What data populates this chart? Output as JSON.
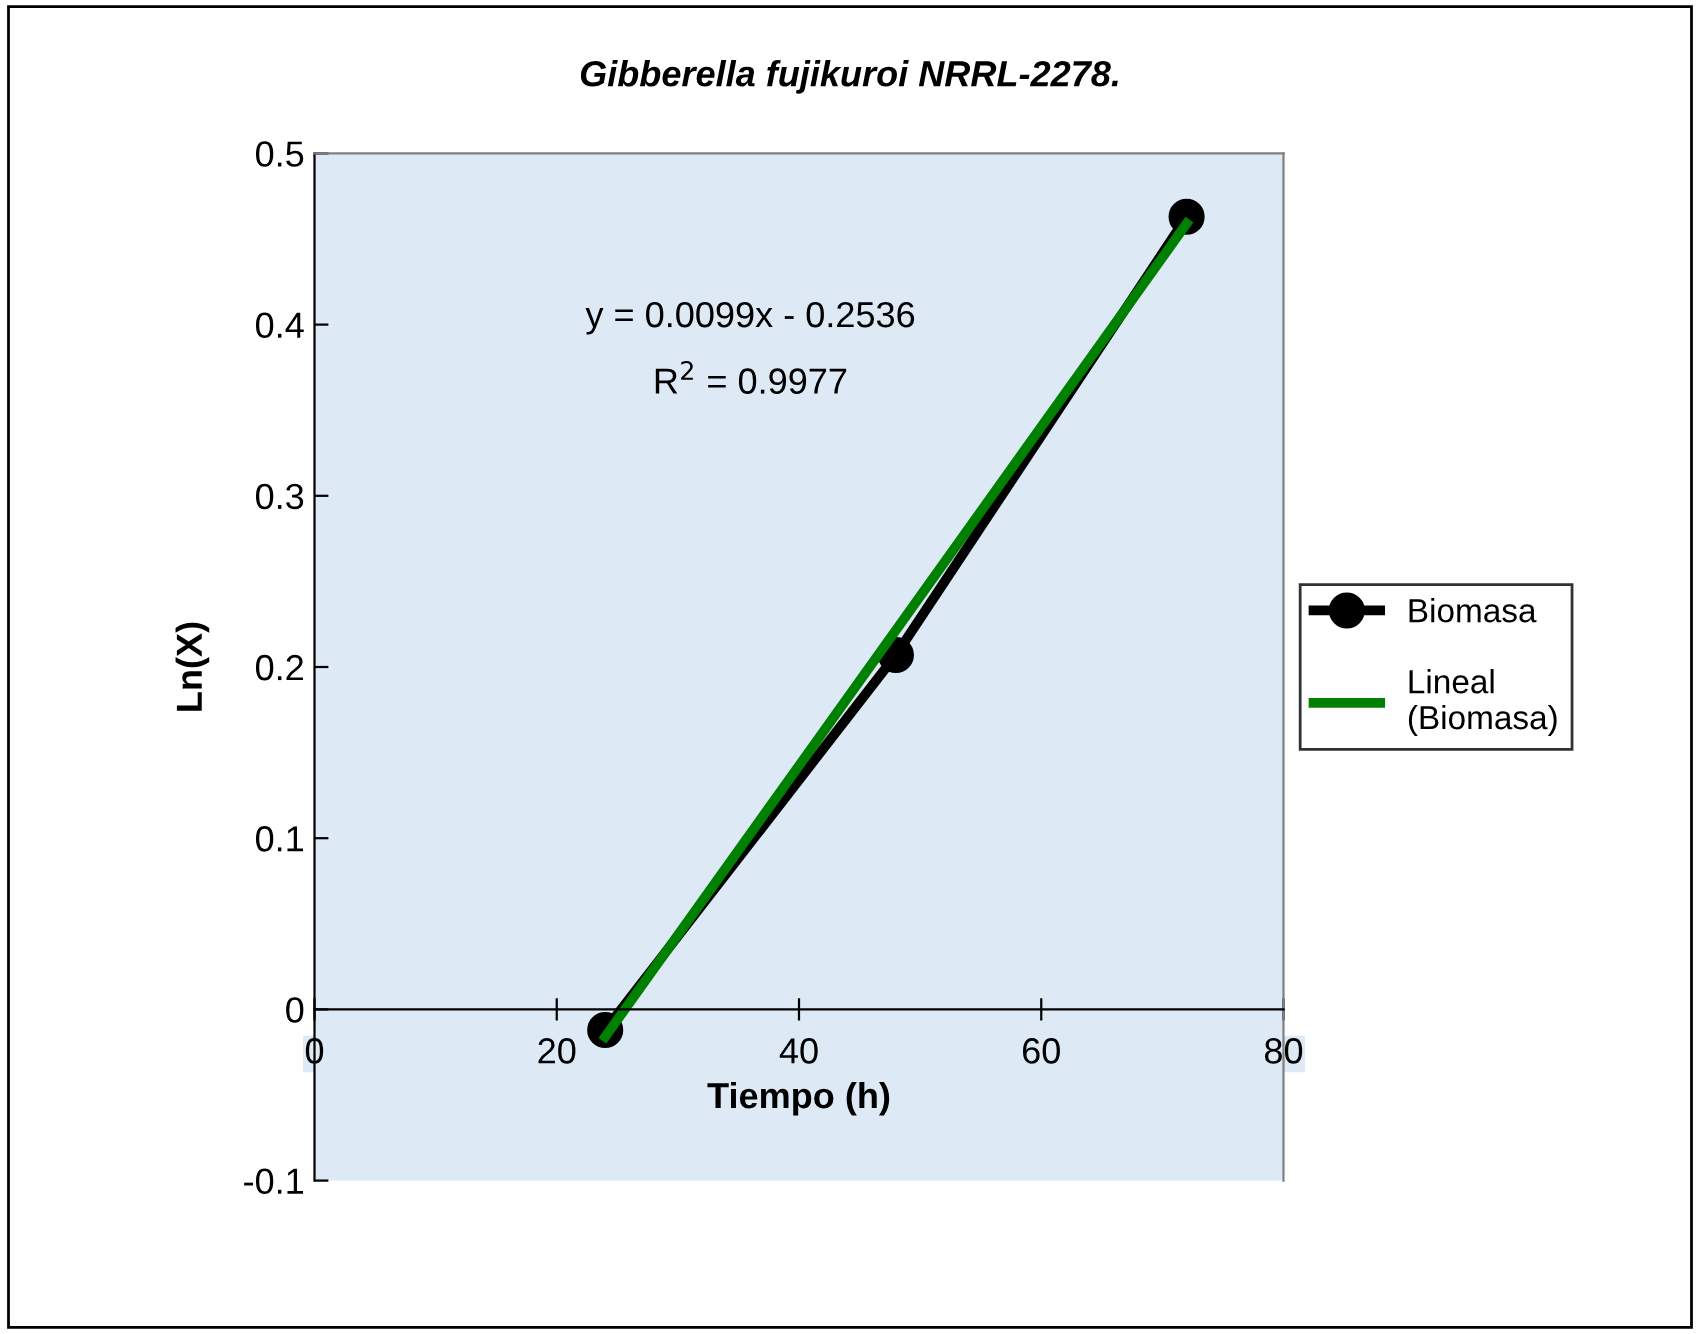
{
  "chart_data": {
    "type": "line",
    "title": "Gibberella fujikuroi NRRL-2278.",
    "xlabel": "Tiempo (h)",
    "ylabel": "Ln(X)",
    "x": [
      24,
      48,
      72
    ],
    "series": [
      {
        "name": "Biomasa",
        "color": "#000000",
        "values": [
          -0.012,
          0.207,
          0.463
        ],
        "marker": "circle"
      },
      {
        "name": "Lineal (Biomasa)",
        "color": "#008000",
        "x": [
          24,
          72
        ],
        "values": [
          -0.016,
          0.459
        ],
        "marker": "none"
      }
    ],
    "xlim": [
      0,
      80
    ],
    "xticks": [
      0,
      20,
      40,
      60,
      80
    ],
    "ylim": [
      -0.1,
      0.5
    ],
    "yticks": [
      -0.1,
      0,
      0.1,
      0.2,
      0.3,
      0.4,
      0.5
    ],
    "annotations": [
      "y = 0.0099x - 0.2536",
      "R$^{2}$ = 0.9977"
    ],
    "legend": "right",
    "grid": false
  }
}
